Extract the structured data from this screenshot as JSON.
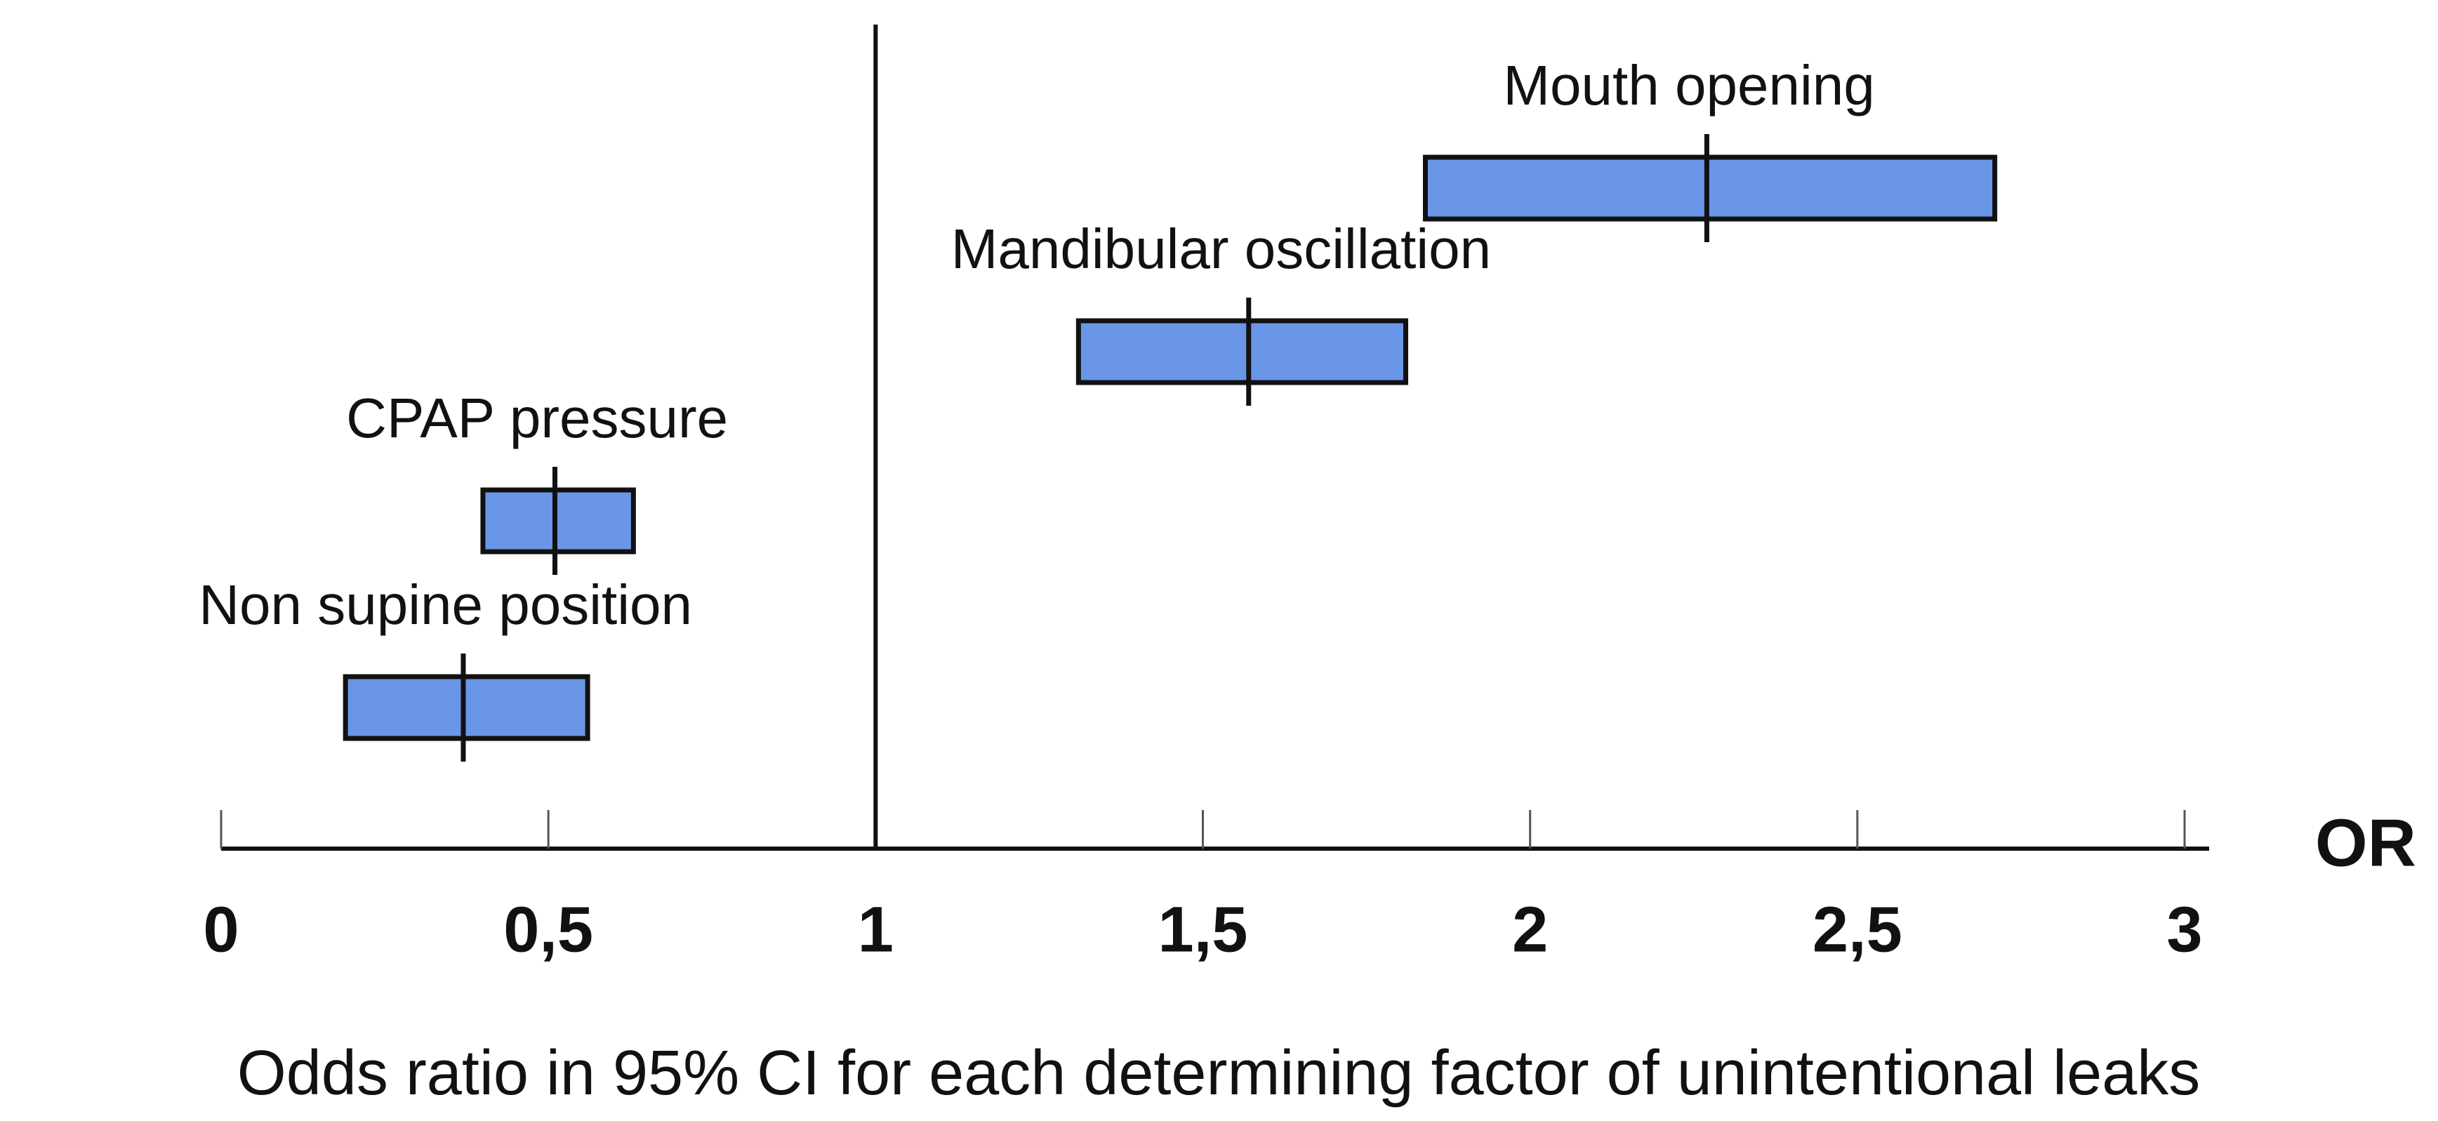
{
  "chart_data": {
    "type": "forest",
    "title": "Odds ratio in 95% CI for each determining factor of unintentional leaks",
    "xlabel": "OR",
    "categories": [
      "Mouth opening",
      "Mandibular oscillation",
      "CPAP pressure",
      "Non supine position"
    ],
    "values": [
      2.27,
      1.57,
      0.51,
      0.37
    ],
    "lower": [
      1.84,
      1.31,
      0.4,
      0.19
    ],
    "upper": [
      2.71,
      1.81,
      0.63,
      0.56
    ],
    "color": "#6a96e8",
    "reference_line": 1,
    "xlim": [
      0,
      3
    ],
    "xticks": [
      0,
      {
        "value": 0.5,
        "label": "0,5"
      },
      1,
      {
        "value": 1.5,
        "label": "1,5"
      },
      2,
      {
        "value": 2.5,
        "label": "2,5"
      },
      3
    ]
  }
}
